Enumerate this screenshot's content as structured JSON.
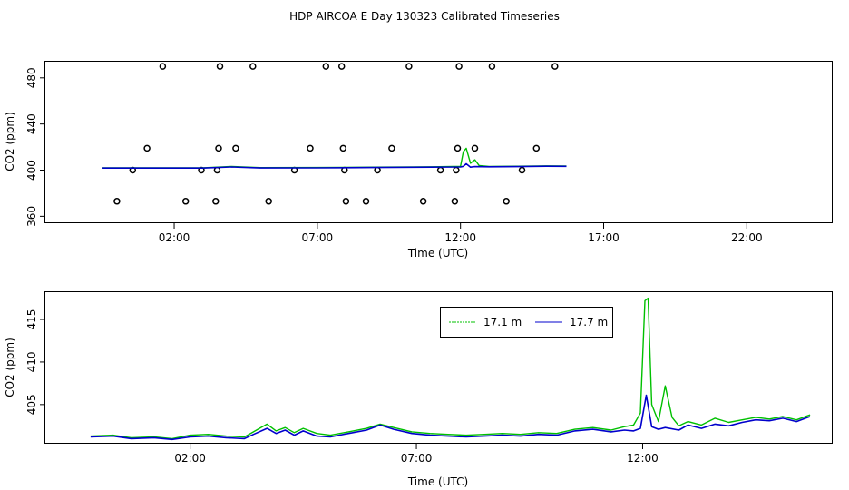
{
  "title": "HDP AIRCOA E  Day 130323  Calibrated Timeseries",
  "colors": {
    "green": "#00c000",
    "blue": "#0000cc",
    "black": "#000000"
  },
  "chart_data": [
    {
      "type": "scatter",
      "xlabel": "Time (UTC)",
      "ylabel": "CO2 (ppm)",
      "xlim": [
        -2.5,
        25.0
      ],
      "ylim": [
        354,
        494
      ],
      "xticks": [
        2,
        7,
        12,
        17,
        22
      ],
      "xtick_labels": [
        "02:00",
        "07:00",
        "12:00",
        "17:00",
        "22:00"
      ],
      "yticks": [
        360,
        400,
        440,
        480
      ],
      "ytick_labels": [
        "360",
        "400",
        "440",
        "480"
      ],
      "points": [
        [
          0.0,
          373
        ],
        [
          0.55,
          400
        ],
        [
          1.05,
          419
        ],
        [
          1.6,
          490
        ],
        [
          2.4,
          373
        ],
        [
          2.95,
          400
        ],
        [
          3.45,
          373
        ],
        [
          3.5,
          400
        ],
        [
          3.55,
          419
        ],
        [
          3.6,
          490
        ],
        [
          4.15,
          419
        ],
        [
          4.75,
          490
        ],
        [
          5.3,
          373
        ],
        [
          6.2,
          400
        ],
        [
          6.75,
          419
        ],
        [
          7.3,
          490
        ],
        [
          7.85,
          490
        ],
        [
          7.9,
          419
        ],
        [
          7.95,
          400
        ],
        [
          8.0,
          373
        ],
        [
          8.7,
          373
        ],
        [
          9.1,
          400
        ],
        [
          9.6,
          419
        ],
        [
          10.2,
          490
        ],
        [
          10.7,
          373
        ],
        [
          11.3,
          400
        ],
        [
          11.8,
          373
        ],
        [
          11.85,
          400
        ],
        [
          11.9,
          419
        ],
        [
          11.95,
          490
        ],
        [
          12.5,
          419
        ],
        [
          13.1,
          490
        ],
        [
          13.6,
          373
        ],
        [
          14.15,
          400
        ],
        [
          14.65,
          419
        ],
        [
          15.3,
          490
        ]
      ],
      "series": [
        {
          "name": "17.1 m",
          "color": "#00c000",
          "points": [
            [
              -0.5,
              402.0
            ],
            [
              3.0,
              402.0
            ],
            [
              4.0,
              403.2
            ],
            [
              5.0,
              402.2
            ],
            [
              7.0,
              402.3
            ],
            [
              9.0,
              402.6
            ],
            [
              11.0,
              402.9
            ],
            [
              12.0,
              403.3
            ],
            [
              12.1,
              416
            ],
            [
              12.2,
              419
            ],
            [
              12.35,
              406
            ],
            [
              12.5,
              409
            ],
            [
              12.65,
              404
            ],
            [
              13.0,
              403.2
            ],
            [
              14.0,
              403.4
            ],
            [
              15.0,
              403.7
            ],
            [
              15.7,
              403.6
            ]
          ]
        },
        {
          "name": "17.7 m",
          "color": "#0000cc",
          "points": [
            [
              -0.5,
              401.8
            ],
            [
              3.0,
              401.8
            ],
            [
              4.0,
              402.8
            ],
            [
              5.0,
              401.9
            ],
            [
              7.0,
              402.0
            ],
            [
              9.0,
              402.3
            ],
            [
              11.0,
              402.6
            ],
            [
              12.0,
              402.8
            ],
            [
              12.1,
              403.3
            ],
            [
              12.2,
              405.5
            ],
            [
              12.35,
              402.6
            ],
            [
              12.5,
              403.1
            ],
            [
              13.0,
              402.9
            ],
            [
              14.0,
              403.1
            ],
            [
              15.0,
              403.4
            ],
            [
              15.7,
              403.3
            ]
          ]
        }
      ]
    },
    {
      "type": "line",
      "xlabel": "Time (UTC)",
      "ylabel": "CO2 (ppm)",
      "xlim": [
        -1.2,
        16.2
      ],
      "ylim": [
        400.4,
        418.2
      ],
      "xticks": [
        2,
        7,
        12
      ],
      "xtick_labels": [
        "02:00",
        "07:00",
        "12:00"
      ],
      "yticks": [
        405,
        410,
        415
      ],
      "ytick_labels": [
        "405",
        "410",
        "415"
      ],
      "legend": {
        "position": "top-right",
        "entries": [
          "17.1 m",
          "17.7 m"
        ]
      },
      "series": [
        {
          "name": "17.1 m",
          "color": "#00c000",
          "points": [
            [
              -0.2,
              401.3
            ],
            [
              0.3,
              401.4
            ],
            [
              0.7,
              401.1
            ],
            [
              1.2,
              401.2
            ],
            [
              1.6,
              401.0
            ],
            [
              2.0,
              401.4
            ],
            [
              2.4,
              401.5
            ],
            [
              2.8,
              401.3
            ],
            [
              3.2,
              401.2
            ],
            [
              3.4,
              401.8
            ],
            [
              3.7,
              402.7
            ],
            [
              3.9,
              401.9
            ],
            [
              4.1,
              402.3
            ],
            [
              4.3,
              401.7
            ],
            [
              4.5,
              402.2
            ],
            [
              4.8,
              401.6
            ],
            [
              5.1,
              401.4
            ],
            [
              5.5,
              401.8
            ],
            [
              5.9,
              402.2
            ],
            [
              6.2,
              402.7
            ],
            [
              6.5,
              402.3
            ],
            [
              6.9,
              401.8
            ],
            [
              7.3,
              401.6
            ],
            [
              7.7,
              401.5
            ],
            [
              8.1,
              401.4
            ],
            [
              8.5,
              401.5
            ],
            [
              8.9,
              401.6
            ],
            [
              9.3,
              401.5
            ],
            [
              9.7,
              401.7
            ],
            [
              10.1,
              401.6
            ],
            [
              10.5,
              402.1
            ],
            [
              10.9,
              402.3
            ],
            [
              11.3,
              402.0
            ],
            [
              11.6,
              402.4
            ],
            [
              11.8,
              402.6
            ],
            [
              11.95,
              404.0
            ],
            [
              12.05,
              417.2
            ],
            [
              12.12,
              417.5
            ],
            [
              12.2,
              405.0
            ],
            [
              12.35,
              403.0
            ],
            [
              12.5,
              407.2
            ],
            [
              12.65,
              403.5
            ],
            [
              12.8,
              402.5
            ],
            [
              13.0,
              403.0
            ],
            [
              13.3,
              402.6
            ],
            [
              13.6,
              403.4
            ],
            [
              13.9,
              402.9
            ],
            [
              14.2,
              403.2
            ],
            [
              14.5,
              403.5
            ],
            [
              14.8,
              403.3
            ],
            [
              15.1,
              403.6
            ],
            [
              15.4,
              403.2
            ],
            [
              15.7,
              403.8
            ]
          ]
        },
        {
          "name": "17.7 m",
          "color": "#0000cc",
          "points": [
            [
              -0.2,
              401.2
            ],
            [
              0.3,
              401.3
            ],
            [
              0.7,
              401.0
            ],
            [
              1.2,
              401.1
            ],
            [
              1.6,
              400.9
            ],
            [
              2.0,
              401.2
            ],
            [
              2.4,
              401.3
            ],
            [
              2.8,
              401.1
            ],
            [
              3.2,
              401.0
            ],
            [
              3.4,
              401.5
            ],
            [
              3.7,
              402.2
            ],
            [
              3.9,
              401.6
            ],
            [
              4.1,
              402.0
            ],
            [
              4.3,
              401.4
            ],
            [
              4.5,
              401.9
            ],
            [
              4.8,
              401.3
            ],
            [
              5.1,
              401.2
            ],
            [
              5.5,
              401.6
            ],
            [
              5.9,
              402.0
            ],
            [
              6.2,
              402.6
            ],
            [
              6.5,
              402.1
            ],
            [
              6.9,
              401.6
            ],
            [
              7.3,
              401.4
            ],
            [
              7.7,
              401.3
            ],
            [
              8.1,
              401.2
            ],
            [
              8.5,
              401.3
            ],
            [
              8.9,
              401.4
            ],
            [
              9.3,
              401.3
            ],
            [
              9.7,
              401.5
            ],
            [
              10.1,
              401.4
            ],
            [
              10.5,
              401.9
            ],
            [
              10.9,
              402.1
            ],
            [
              11.3,
              401.8
            ],
            [
              11.6,
              402.0
            ],
            [
              11.8,
              401.9
            ],
            [
              11.95,
              402.2
            ],
            [
              12.08,
              406.1
            ],
            [
              12.2,
              402.4
            ],
            [
              12.35,
              402.1
            ],
            [
              12.5,
              402.3
            ],
            [
              12.8,
              402.0
            ],
            [
              13.0,
              402.6
            ],
            [
              13.3,
              402.2
            ],
            [
              13.6,
              402.7
            ],
            [
              13.9,
              402.5
            ],
            [
              14.2,
              402.9
            ],
            [
              14.5,
              403.2
            ],
            [
              14.8,
              403.1
            ],
            [
              15.1,
              403.4
            ],
            [
              15.4,
              403.0
            ],
            [
              15.7,
              403.6
            ]
          ]
        }
      ]
    }
  ]
}
